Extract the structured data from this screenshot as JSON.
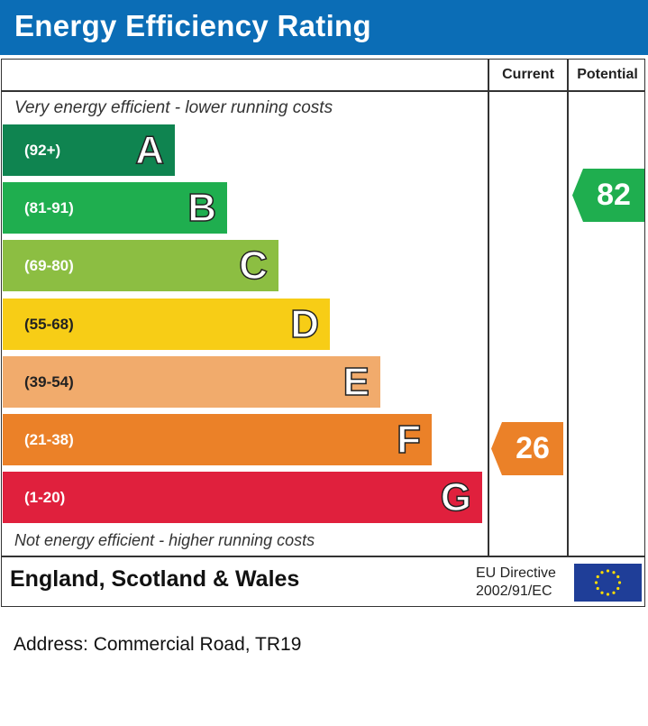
{
  "header": {
    "title": "Energy Efficiency Rating"
  },
  "columns": {
    "current": "Current",
    "potential": "Potential"
  },
  "captions": {
    "top": "Very energy efficient - lower running costs",
    "bottom": "Not energy efficient - higher running costs"
  },
  "chart_data": {
    "type": "bar",
    "title": "Energy Efficiency Rating",
    "categories": [
      "A",
      "B",
      "C",
      "D",
      "E",
      "F",
      "G"
    ],
    "ranges": [
      "(92+)",
      "(81-91)",
      "(69-80)",
      "(55-68)",
      "(39-54)",
      "(21-38)",
      "(1-20)"
    ],
    "colors": [
      "#0f8450",
      "#1fae4f",
      "#8cbe42",
      "#f7cd16",
      "#f1ab6c",
      "#eb8128",
      "#e0203d"
    ],
    "current": {
      "value": 26,
      "band": "F",
      "color": "#eb8128"
    },
    "potential": {
      "value": 82,
      "band": "B",
      "color": "#1fae4f"
    }
  },
  "footer": {
    "region": "England, Scotland & Wales",
    "directive_line1": "EU Directive",
    "directive_line2": "2002/91/EC",
    "flag_icon": "eu-flag-icon"
  },
  "address": "Address: Commercial Road, TR19"
}
